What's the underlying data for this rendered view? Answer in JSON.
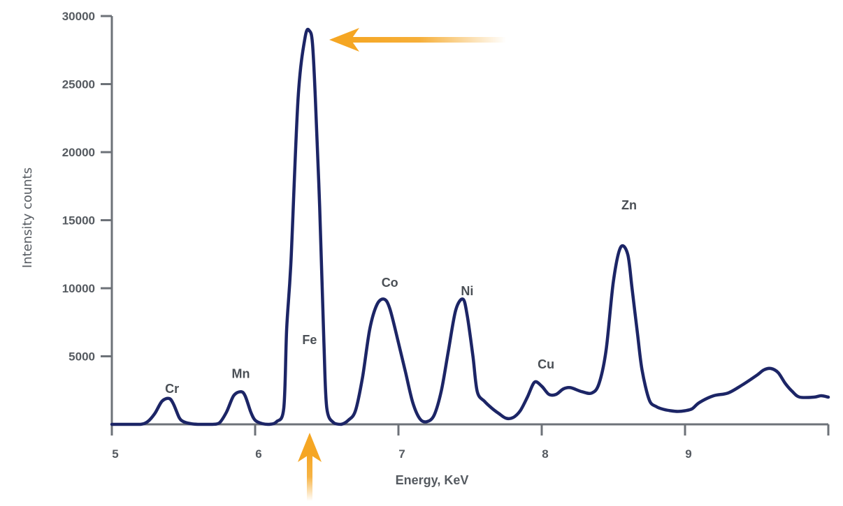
{
  "chart_data": {
    "type": "line",
    "title": "",
    "xlabel": "Energy, KeV",
    "ylabel": "Intensity counts",
    "xlim": [
      5,
      10
    ],
    "ylim": [
      0,
      30000
    ],
    "x_ticks": [
      "5",
      "6",
      "7",
      "8",
      "9"
    ],
    "y_ticks": [
      "5000",
      "10000",
      "15000",
      "20000",
      "25000",
      "30000"
    ],
    "grid": false,
    "legend": "none",
    "line_color": "#1c2566",
    "annotation_color": "#f5a623",
    "series": [
      {
        "name": "",
        "x": [
          5.0,
          5.1,
          5.2,
          5.25,
          5.3,
          5.35,
          5.4,
          5.43,
          5.47,
          5.5,
          5.55,
          5.6,
          5.7,
          5.75,
          5.8,
          5.85,
          5.9,
          5.93,
          5.97,
          6.0,
          6.05,
          6.1,
          6.15,
          6.2,
          6.22,
          6.25,
          6.3,
          6.35,
          6.38,
          6.4,
          6.42,
          6.45,
          6.48,
          6.5,
          6.55,
          6.6,
          6.65,
          6.7,
          6.75,
          6.8,
          6.85,
          6.9,
          6.94,
          7.0,
          7.05,
          7.1,
          7.15,
          7.2,
          7.25,
          7.3,
          7.35,
          7.4,
          7.45,
          7.48,
          7.52,
          7.55,
          7.6,
          7.65,
          7.7,
          7.75,
          7.8,
          7.85,
          7.9,
          7.95,
          8.0,
          8.05,
          8.1,
          8.15,
          8.2,
          8.28,
          8.35,
          8.4,
          8.45,
          8.5,
          8.55,
          8.6,
          8.63,
          8.67,
          8.7,
          8.75,
          8.8,
          8.85,
          8.9,
          8.95,
          9.0,
          9.05,
          9.1,
          9.2,
          9.3,
          9.4,
          9.5,
          9.55,
          9.6,
          9.65,
          9.7,
          9.75,
          9.8,
          9.9,
          9.95,
          10.0
        ],
        "values": [
          0,
          0,
          0,
          200,
          800,
          1700,
          1900,
          1500,
          500,
          200,
          50,
          0,
          0,
          100,
          900,
          2100,
          2400,
          2100,
          900,
          300,
          50,
          0,
          200,
          1200,
          7000,
          12000,
          24000,
          28500,
          28900,
          28000,
          24000,
          16000,
          6000,
          1200,
          100,
          0,
          300,
          1000,
          3500,
          7000,
          8800,
          9200,
          8500,
          6000,
          3800,
          1600,
          400,
          200,
          700,
          2500,
          5500,
          8400,
          9200,
          8000,
          5000,
          2400,
          1700,
          1200,
          800,
          450,
          500,
          1000,
          2000,
          3100,
          2800,
          2200,
          2200,
          2600,
          2700,
          2400,
          2300,
          3000,
          5500,
          10500,
          13000,
          12500,
          10000,
          6500,
          4000,
          1800,
          1300,
          1100,
          1000,
          950,
          1000,
          1150,
          1600,
          2100,
          2300,
          2900,
          3600,
          4000,
          4100,
          3800,
          3000,
          2400,
          2000,
          2000,
          2100,
          2000
        ]
      }
    ],
    "annotations": [
      {
        "label": "Cr",
        "x": 5.42,
        "y": 2300
      },
      {
        "label": "Mn",
        "x": 5.9,
        "y": 3400
      },
      {
        "label": "Fe",
        "x": 6.38,
        "y": 5900
      },
      {
        "label": "Co",
        "x": 6.94,
        "y": 10100
      },
      {
        "label": "Ni",
        "x": 7.48,
        "y": 9500
      },
      {
        "label": "Cu",
        "x": 8.03,
        "y": 4100
      },
      {
        "label": "Zn",
        "x": 8.61,
        "y": 15800
      }
    ]
  }
}
